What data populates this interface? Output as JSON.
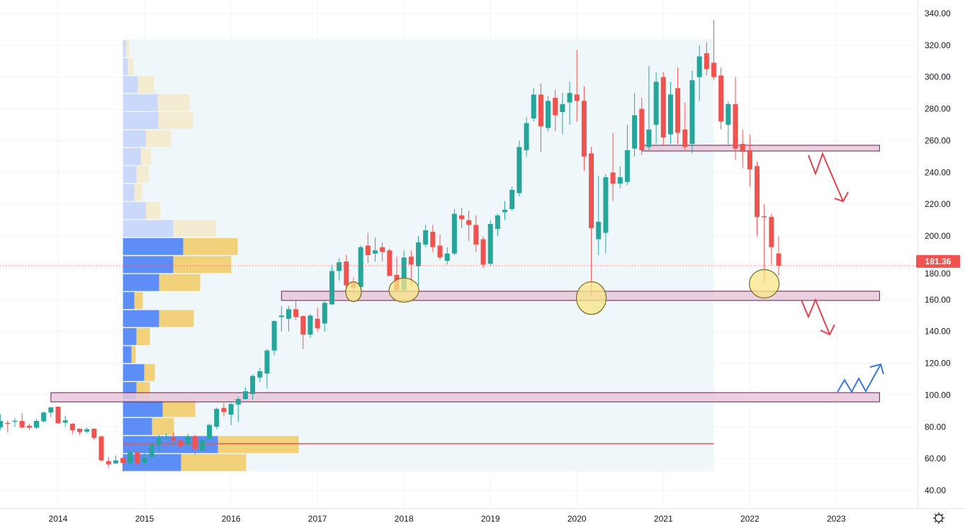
{
  "chart_data": {
    "type": "candlestick",
    "title": "",
    "interval": "monthly",
    "ylim": [
      40,
      340
    ],
    "y_ticks": [
      "40.00",
      "60.00",
      "80.00",
      "100.00",
      "120.00",
      "140.00",
      "160.00",
      "180.00",
      "200.00",
      "220.00",
      "240.00",
      "260.00",
      "280.00",
      "300.00",
      "320.00",
      "340.00"
    ],
    "x_ticks": [
      "2014",
      "2015",
      "2016",
      "2017",
      "2018",
      "2019",
      "2020",
      "2021",
      "2022",
      "2023"
    ],
    "last_price": "181.36",
    "last_price_value": 181.36,
    "colors": {
      "up": "#26a69a",
      "down": "#ef5350",
      "vp_up": "#5d8df7",
      "vp_down": "#f1d27a",
      "vp_up_faded": "#c9d8fb",
      "vp_down_faded": "#f4ecd1",
      "zone_fill": "#e6c8da",
      "zone_border": "#6b1b45",
      "circle": "#f8e685",
      "poc": "#e55b4d",
      "arrow_down": "#e0434f",
      "arrow_up": "#3a78d8"
    },
    "candles_ohlc": [
      [
        "2013-05",
        79.7,
        88,
        78,
        83.7
      ],
      [
        "2013-06",
        82.5,
        84,
        76.5,
        82.3
      ],
      [
        "2013-07",
        83.4,
        85.5,
        80,
        83.8
      ],
      [
        "2013-08",
        83.7,
        88.5,
        79,
        79.7
      ],
      [
        "2013-09",
        80.7,
        82,
        78,
        79.5
      ],
      [
        "2013-10",
        79.5,
        85,
        78.5,
        83.7
      ],
      [
        "2013-11",
        83.4,
        89.5,
        83,
        89
      ],
      [
        "2013-12",
        89,
        92.5,
        86,
        92.3
      ],
      [
        "2014-01",
        92.6,
        93,
        82,
        82.2
      ],
      [
        "2014-02",
        82.6,
        87,
        80,
        84.1
      ],
      [
        "2014-03",
        81.9,
        82.5,
        75.5,
        77.9
      ],
      [
        "2014-04",
        78.8,
        79,
        75,
        76.7
      ],
      [
        "2014-05",
        77,
        79.5,
        76,
        78.5
      ],
      [
        "2014-06",
        78.8,
        79,
        72,
        73
      ],
      [
        "2014-07",
        74,
        74.5,
        58,
        58.9
      ],
      [
        "2014-08",
        58.5,
        61,
        54,
        56.4
      ],
      [
        "2014-09",
        57,
        62,
        56.5,
        58.9
      ],
      [
        "2014-10",
        60.4,
        60.6,
        52,
        57.4
      ],
      [
        "2014-11",
        57.1,
        66,
        54,
        64.1
      ],
      [
        "2014-12",
        64.1,
        64.5,
        55,
        57
      ],
      [
        "2015-01",
        57.4,
        64,
        54.5,
        60.7
      ],
      [
        "2015-02",
        61.1,
        70,
        60.5,
        68.5
      ],
      [
        "2015-03",
        68.5,
        75,
        65,
        73
      ],
      [
        "2015-04",
        73,
        76,
        72.5,
        73.2
      ],
      [
        "2015-05",
        73.4,
        76.5,
        70.5,
        71.2
      ],
      [
        "2015-06",
        71.5,
        72,
        67,
        67.8
      ],
      [
        "2015-07",
        69.3,
        75.5,
        67.5,
        74
      ],
      [
        "2015-08",
        74,
        75,
        62.5,
        66.3
      ],
      [
        "2015-09",
        65.1,
        72,
        64.5,
        71.8
      ],
      [
        "2015-10",
        72.3,
        82,
        71,
        81.2
      ],
      [
        "2015-11",
        80,
        92,
        78.5,
        91.3
      ],
      [
        "2015-12",
        91.9,
        95,
        86.5,
        89.3
      ],
      [
        "2016-01",
        87.7,
        95,
        81,
        94.4
      ],
      [
        "2016-02",
        94,
        99,
        83,
        97.5
      ],
      [
        "2016-03",
        97.5,
        105,
        97,
        102.4
      ],
      [
        "2016-04",
        100.6,
        113,
        97,
        112
      ],
      [
        "2016-05",
        111,
        117,
        108,
        115
      ],
      [
        "2016-06",
        113.5,
        129,
        104,
        128
      ],
      [
        "2016-07",
        128,
        147,
        125,
        146.5
      ],
      [
        "2016-08",
        149,
        156,
        140,
        150
      ],
      [
        "2016-09",
        148,
        156,
        140,
        154
      ],
      [
        "2016-10",
        154,
        160,
        147,
        149
      ],
      [
        "2016-11",
        149.7,
        150,
        129,
        138
      ],
      [
        "2016-12",
        138,
        151,
        136,
        150
      ],
      [
        "2017-01",
        148,
        155,
        140,
        142
      ],
      [
        "2017-02",
        145,
        160,
        140,
        158
      ],
      [
        "2017-03",
        157,
        182,
        157,
        178
      ],
      [
        "2017-04",
        178,
        186,
        172,
        183.5
      ],
      [
        "2017-05",
        184,
        188,
        166,
        169
      ],
      [
        "2017-06",
        170.6,
        174,
        163,
        167.5
      ],
      [
        "2017-07",
        168,
        194,
        167,
        193
      ],
      [
        "2017-08",
        194,
        202,
        183,
        188
      ],
      [
        "2017-09",
        189,
        199,
        184,
        191
      ],
      [
        "2017-10",
        193,
        196,
        184,
        190
      ],
      [
        "2017-11",
        191,
        192,
        175,
        175
      ],
      [
        "2017-12",
        175.5,
        187,
        166,
        166
      ],
      [
        "2018-01",
        166,
        191,
        165,
        186.5
      ],
      [
        "2018-02",
        187,
        191,
        169,
        182
      ],
      [
        "2018-03",
        181,
        200,
        169,
        196
      ],
      [
        "2018-04",
        194.7,
        207,
        193,
        203.6
      ],
      [
        "2018-05",
        202.7,
        207,
        190,
        193
      ],
      [
        "2018-06",
        194,
        201,
        185,
        186.6
      ],
      [
        "2018-07",
        184.4,
        193,
        182,
        189
      ],
      [
        "2018-08",
        189,
        217,
        188,
        214
      ],
      [
        "2018-09",
        213,
        218,
        205,
        210.6
      ],
      [
        "2018-10",
        210,
        216,
        197,
        207
      ],
      [
        "2018-11",
        207,
        213,
        190,
        194.7
      ],
      [
        "2018-12",
        198,
        200,
        180,
        182
      ],
      [
        "2019-01",
        182.6,
        210,
        181,
        207.6
      ],
      [
        "2019-02",
        204.5,
        214,
        200,
        213
      ],
      [
        "2019-03",
        215,
        222,
        210,
        216.5
      ],
      [
        "2019-04",
        217,
        231,
        216,
        229
      ],
      [
        "2019-05",
        227,
        260,
        225,
        256
      ],
      [
        "2019-06",
        254,
        275,
        250,
        271
      ],
      [
        "2019-07",
        274,
        293,
        272,
        289
      ],
      [
        "2019-08",
        289,
        296,
        253,
        269
      ],
      [
        "2019-09",
        268,
        288,
        266,
        285
      ],
      [
        "2019-10",
        287,
        292,
        266,
        276
      ],
      [
        "2019-11",
        278,
        290,
        264,
        283
      ],
      [
        "2019-12",
        284,
        297,
        270,
        290
      ],
      [
        "2020-01",
        289,
        317,
        272,
        285
      ],
      [
        "2020-02",
        285,
        294,
        241,
        250
      ],
      [
        "2020-03",
        252,
        256,
        162,
        205
      ],
      [
        "2020-04",
        198,
        238,
        188,
        209
      ],
      [
        "2020-05",
        202,
        239,
        189,
        237
      ],
      [
        "2020-06",
        240,
        265,
        222,
        233
      ],
      [
        "2020-07",
        233,
        244,
        230,
        237
      ],
      [
        "2020-08",
        234,
        270,
        232,
        254
      ],
      [
        "2020-09",
        255,
        290,
        250,
        276
      ],
      [
        "2020-10",
        280,
        287,
        251,
        254
      ],
      [
        "2020-11",
        256,
        307,
        254,
        267
      ],
      [
        "2020-12",
        270,
        303,
        258,
        297
      ],
      [
        "2021-01",
        300,
        303,
        257,
        262
      ],
      [
        "2021-02",
        264,
        297,
        258,
        289
      ],
      [
        "2021-03",
        293,
        306,
        258,
        265
      ],
      [
        "2021-04",
        267,
        284,
        254,
        256
      ],
      [
        "2021-05",
        258,
        304,
        252,
        298
      ],
      [
        "2021-06",
        300,
        320,
        285,
        313
      ],
      [
        "2021-07",
        315,
        322,
        301,
        305
      ],
      [
        "2021-08",
        309,
        336,
        298,
        300
      ],
      [
        "2021-09",
        301,
        306,
        267,
        272
      ],
      [
        "2021-10",
        270,
        285,
        257,
        283
      ],
      [
        "2021-11",
        283,
        300,
        248,
        255
      ],
      [
        "2021-12",
        258,
        267,
        243,
        253
      ],
      [
        "2022-01",
        254,
        264,
        231,
        242
      ],
      [
        "2022-02",
        244,
        247,
        200,
        212
      ],
      [
        "2022-03",
        212.5,
        220,
        170,
        212
      ],
      [
        "2022-04",
        212,
        214,
        182,
        193
      ],
      [
        "2022-05",
        189,
        200,
        175,
        181.36
      ]
    ],
    "volume_profile": {
      "start": "2014-10",
      "end": "2021-08",
      "price_low": 52,
      "row_size": 11.32,
      "poc_price": 69.4,
      "rows_up_down_inValueArea": [
        [
          82,
          92,
          true
        ],
        [
          134,
          114,
          true
        ],
        [
          41,
          31,
          true
        ],
        [
          56,
          46,
          true
        ],
        [
          19,
          19,
          true
        ],
        [
          30,
          15,
          true
        ],
        [
          12,
          6,
          true
        ],
        [
          19,
          19,
          true
        ],
        [
          51,
          49,
          true
        ],
        [
          16,
          12,
          true
        ],
        [
          51,
          58,
          true
        ],
        [
          71,
          82,
          true
        ],
        [
          85,
          77,
          true
        ],
        [
          71,
          60,
          false
        ],
        [
          32,
          21,
          false
        ],
        [
          16,
          11,
          false
        ],
        [
          19,
          17,
          false
        ],
        [
          25,
          15,
          false
        ],
        [
          32,
          36,
          false
        ],
        [
          50,
          49,
          false
        ],
        [
          49,
          45,
          false
        ],
        [
          21,
          23,
          false
        ],
        [
          7,
          8,
          false
        ],
        [
          4,
          5,
          false
        ]
      ]
    },
    "zones": [
      {
        "name": "resistance-zone-255",
        "from": "2020-10",
        "to": "2023-07",
        "low": 253.5,
        "high": 257.1
      },
      {
        "name": "support-zone-162",
        "from": "2016-08",
        "to": "2023-07",
        "low": 159.5,
        "high": 165.3
      },
      {
        "name": "support-zone-98",
        "from": "2013-12",
        "to": "2023-07",
        "low": 95.7,
        "high": 101.5
      }
    ],
    "circles": [
      {
        "date": "2017-06",
        "price": 165
      },
      {
        "date": "2018-01",
        "price": 166
      },
      {
        "date": "2020-03",
        "price": 161
      },
      {
        "date": "2022-03",
        "price": 170
      }
    ]
  }
}
